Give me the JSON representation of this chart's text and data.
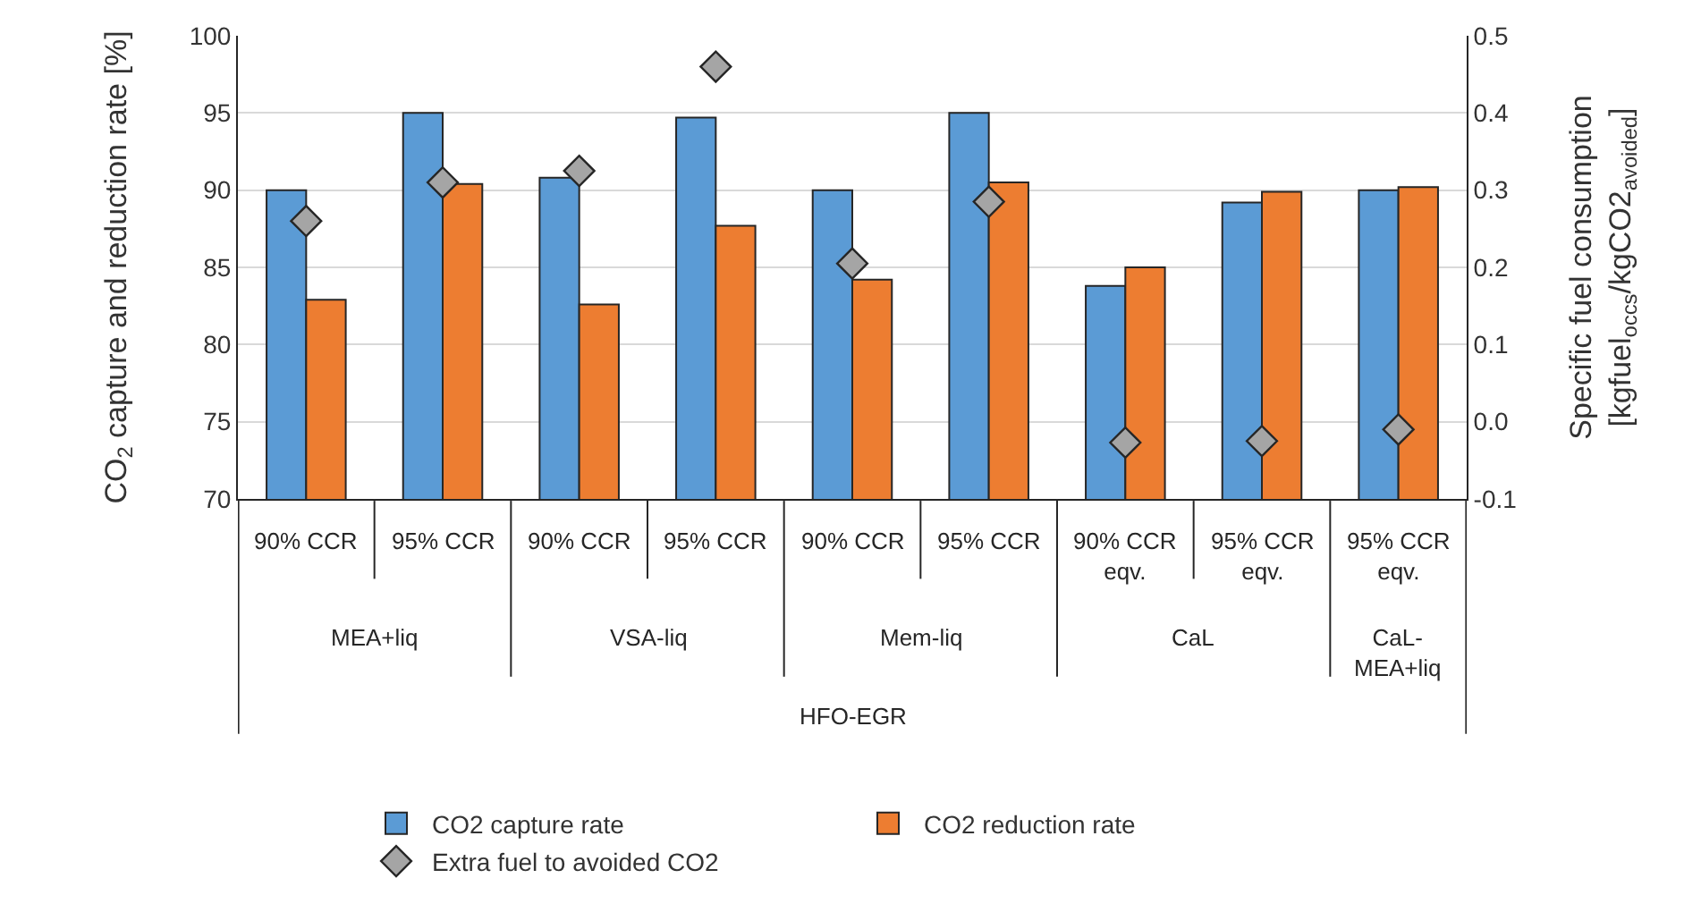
{
  "chart_data": {
    "type": "bar",
    "ylabel": "CO$_{2}$ capture and reduction rate [%]",
    "y2label": "Specific fuel consumption\n[kgfuel$_{occs}$/kgCO2$_{avoided}$]",
    "categories": [
      "90% CCR",
      "95% CCR",
      "90% CCR",
      "95% CCR",
      "90% CCR",
      "95% CCR",
      "90% CCR eqv.",
      "95% CCR eqv.",
      "95% CCR eqv."
    ],
    "annotations": [
      "MEA+liq",
      "VSA-liq",
      "Mem-liq",
      "CaL",
      "CaL-MEA+liq",
      "HFO-EGR"
    ],
    "series": [
      {
        "name": "CO2 capture rate",
        "color": "#5b9bd5",
        "values": [
          90,
          95,
          90.8,
          94.7,
          90,
          95,
          83.8,
          89.2,
          90
        ]
      },
      {
        "name": "CO2 reduction rate",
        "color": "#ed7d31",
        "values": [
          82.9,
          90.4,
          82.6,
          87.7,
          84.2,
          90.5,
          85,
          89.9,
          90.2
        ]
      },
      {
        "name": "Extra fuel to avoided CO2",
        "type": "scatter",
        "axis": "y2",
        "marker": "diamond",
        "color": "#a5a5a5",
        "values": [
          0.26,
          0.31,
          0.325,
          0.46,
          0.205,
          0.285,
          -0.027,
          -0.025,
          -0.01
        ]
      }
    ],
    "ylim": [
      70,
      100
    ],
    "yticks": [
      70,
      75,
      80,
      85,
      90,
      95,
      100
    ],
    "y2lim": [
      -0.1,
      0.5
    ],
    "y2ticks": [
      -0.1,
      {
        "value": 0,
        "label": "0.0"
      },
      0.1,
      0.2,
      0.3,
      0.4,
      0.5
    ],
    "grid": "y",
    "legend": "bottom"
  }
}
